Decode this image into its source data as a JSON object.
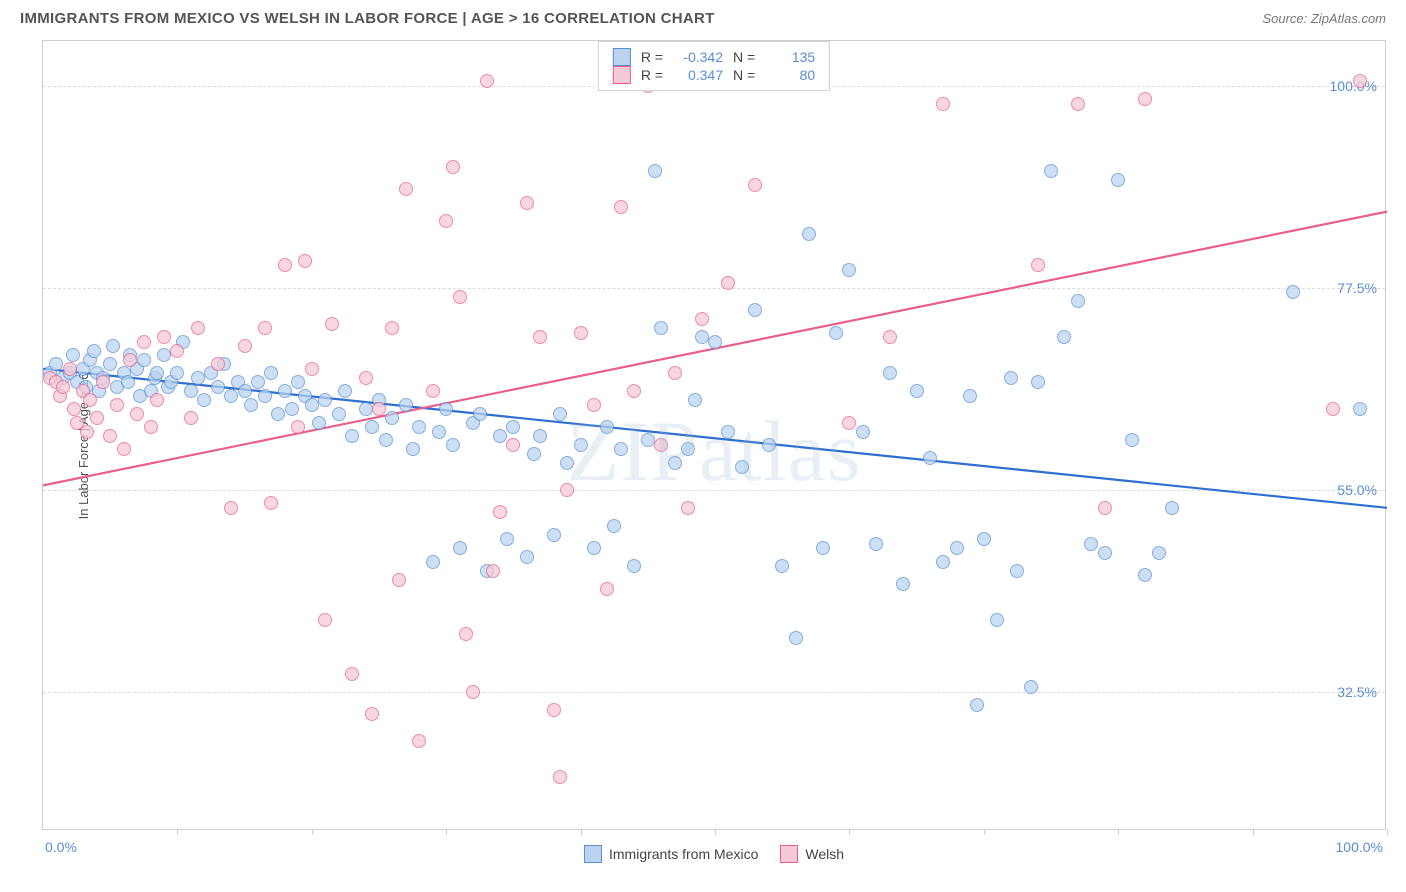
{
  "title": "IMMIGRANTS FROM MEXICO VS WELSH IN LABOR FORCE | AGE > 16 CORRELATION CHART",
  "source": "Source: ZipAtlas.com",
  "ylabel": "In Labor Force | Age > 16",
  "watermark": "ZIPatlas",
  "chart": {
    "type": "scatter",
    "xlim": [
      0,
      100
    ],
    "ylim": [
      17,
      105
    ],
    "x_tick_positions": [
      0,
      10,
      20,
      30,
      40,
      50,
      60,
      70,
      80,
      90,
      100
    ],
    "x_tick_labels_shown": {
      "0": "0.0%",
      "100": "100.0%"
    },
    "y_gridlines": [
      32.5,
      55.0,
      77.5,
      100.0
    ],
    "y_tick_labels": [
      "32.5%",
      "55.0%",
      "77.5%",
      "100.0%"
    ],
    "background_color": "#ffffff",
    "grid_color": "#dcdcdc",
    "border_color": "#cfcfcf",
    "axis_label_color": "#5a8fd6"
  },
  "series": [
    {
      "name": "Immigrants from Mexico",
      "marker_fill": "#b9d3f0",
      "marker_stroke": "#5a8fd6",
      "marker_opacity": 0.72,
      "marker_radius": 7,
      "trend_color": "#2f6fd0",
      "trend_start": [
        0,
        68.5
      ],
      "trend_end": [
        100,
        53.0
      ],
      "R": "-0.342",
      "N": "135",
      "points": [
        [
          0.5,
          68
        ],
        [
          1,
          69
        ],
        [
          1.5,
          67.5
        ],
        [
          2,
          68
        ],
        [
          2.2,
          70
        ],
        [
          2.5,
          67
        ],
        [
          3,
          68.5
        ],
        [
          3.2,
          66.5
        ],
        [
          3.5,
          69.5
        ],
        [
          3.8,
          70.5
        ],
        [
          4,
          68
        ],
        [
          4.2,
          66
        ],
        [
          4.5,
          67.5
        ],
        [
          5,
          69
        ],
        [
          5.2,
          71
        ],
        [
          5.5,
          66.5
        ],
        [
          6,
          68
        ],
        [
          6.3,
          67
        ],
        [
          6.5,
          70
        ],
        [
          7,
          68.5
        ],
        [
          7.2,
          65.5
        ],
        [
          7.5,
          69.5
        ],
        [
          8,
          66
        ],
        [
          8.3,
          67.5
        ],
        [
          8.5,
          68
        ],
        [
          9,
          70
        ],
        [
          9.3,
          66.5
        ],
        [
          9.5,
          67
        ],
        [
          10,
          68
        ],
        [
          10.4,
          71.5
        ],
        [
          11,
          66
        ],
        [
          11.5,
          67.5
        ],
        [
          12,
          65
        ],
        [
          12.5,
          68
        ],
        [
          13,
          66.5
        ],
        [
          13.5,
          69
        ],
        [
          14,
          65.5
        ],
        [
          14.5,
          67
        ],
        [
          15,
          66
        ],
        [
          15.5,
          64.5
        ],
        [
          16,
          67
        ],
        [
          16.5,
          65.5
        ],
        [
          17,
          68
        ],
        [
          17.5,
          63.5
        ],
        [
          18,
          66
        ],
        [
          18.5,
          64
        ],
        [
          19,
          67
        ],
        [
          19.5,
          65.5
        ],
        [
          20,
          64.5
        ],
        [
          20.5,
          62.5
        ],
        [
          21,
          65
        ],
        [
          22,
          63.5
        ],
        [
          22.5,
          66
        ],
        [
          23,
          61
        ],
        [
          24,
          64
        ],
        [
          24.5,
          62
        ],
        [
          25,
          65
        ],
        [
          25.5,
          60.5
        ],
        [
          26,
          63
        ],
        [
          27,
          64.5
        ],
        [
          27.5,
          59.5
        ],
        [
          28,
          62
        ],
        [
          29,
          47
        ],
        [
          29.5,
          61.5
        ],
        [
          30,
          64
        ],
        [
          30.5,
          60
        ],
        [
          31,
          48.5
        ],
        [
          32,
          62.5
        ],
        [
          32.5,
          63.5
        ],
        [
          33,
          46
        ],
        [
          34,
          61
        ],
        [
          34.5,
          49.5
        ],
        [
          35,
          62
        ],
        [
          36,
          47.5
        ],
        [
          36.5,
          59
        ],
        [
          37,
          61
        ],
        [
          38,
          50
        ],
        [
          38.5,
          63.5
        ],
        [
          39,
          58
        ],
        [
          40,
          60
        ],
        [
          41,
          48.5
        ],
        [
          42,
          62
        ],
        [
          42.5,
          51
        ],
        [
          43,
          59.5
        ],
        [
          44,
          46.5
        ],
        [
          45,
          60.5
        ],
        [
          45.5,
          90.5
        ],
        [
          46,
          73
        ],
        [
          47,
          58
        ],
        [
          48,
          59.5
        ],
        [
          48.5,
          65
        ],
        [
          49,
          72
        ],
        [
          50,
          71.5
        ],
        [
          51,
          61.5
        ],
        [
          52,
          57.5
        ],
        [
          53,
          75
        ],
        [
          54,
          60
        ],
        [
          55,
          46.5
        ],
        [
          56,
          38.5
        ],
        [
          57,
          83.5
        ],
        [
          58,
          48.5
        ],
        [
          59,
          72.5
        ],
        [
          60,
          79.5
        ],
        [
          61,
          61.5
        ],
        [
          62,
          49
        ],
        [
          63,
          68
        ],
        [
          64,
          44.5
        ],
        [
          65,
          66
        ],
        [
          66,
          58.5
        ],
        [
          67,
          47
        ],
        [
          68,
          48.5
        ],
        [
          69,
          65.5
        ],
        [
          69.5,
          31
        ],
        [
          70,
          49.5
        ],
        [
          71,
          40.5
        ],
        [
          72,
          67.5
        ],
        [
          72.5,
          46
        ],
        [
          73.5,
          33
        ],
        [
          74,
          67
        ],
        [
          75,
          90.5
        ],
        [
          76,
          72
        ],
        [
          77,
          76
        ],
        [
          78,
          49
        ],
        [
          79,
          48
        ],
        [
          80,
          89.5
        ],
        [
          81,
          60.5
        ],
        [
          82,
          45.5
        ],
        [
          83,
          48
        ],
        [
          84,
          53
        ],
        [
          93,
          77
        ],
        [
          98,
          64
        ]
      ]
    },
    {
      "name": "Welsh",
      "marker_fill": "#f6c9d6",
      "marker_stroke": "#e85f89",
      "marker_opacity": 0.72,
      "marker_radius": 7,
      "trend_color": "#e85f89",
      "trend_start": [
        0,
        55.5
      ],
      "trend_end": [
        100,
        86.0
      ],
      "R": "0.347",
      "N": "80",
      "points": [
        [
          0.5,
          67.5
        ],
        [
          1,
          67
        ],
        [
          1.3,
          65.5
        ],
        [
          1.5,
          66.5
        ],
        [
          2,
          68.5
        ],
        [
          2.3,
          64
        ],
        [
          2.5,
          62.5
        ],
        [
          3,
          66
        ],
        [
          3.3,
          61.5
        ],
        [
          3.5,
          65
        ],
        [
          4,
          63
        ],
        [
          4.5,
          67
        ],
        [
          5,
          61
        ],
        [
          5.5,
          64.5
        ],
        [
          6,
          59.5
        ],
        [
          6.5,
          69.5
        ],
        [
          7,
          63.5
        ],
        [
          7.5,
          71.5
        ],
        [
          8,
          62
        ],
        [
          8.5,
          65
        ],
        [
          9,
          72
        ],
        [
          10,
          70.5
        ],
        [
          11,
          63
        ],
        [
          11.5,
          73
        ],
        [
          13,
          69
        ],
        [
          14,
          53
        ],
        [
          15,
          71
        ],
        [
          16.5,
          73
        ],
        [
          17,
          53.5
        ],
        [
          18,
          80
        ],
        [
          19,
          62
        ],
        [
          19.5,
          80.5
        ],
        [
          20,
          68.5
        ],
        [
          21,
          40.5
        ],
        [
          21.5,
          73.5
        ],
        [
          23,
          34.5
        ],
        [
          24,
          67.5
        ],
        [
          24.5,
          30
        ],
        [
          25,
          64
        ],
        [
          26,
          73
        ],
        [
          26.5,
          45
        ],
        [
          27,
          88.5
        ],
        [
          28,
          27
        ],
        [
          29,
          66
        ],
        [
          30,
          85
        ],
        [
          30.5,
          91
        ],
        [
          31,
          76.5
        ],
        [
          31.5,
          39
        ],
        [
          32,
          32.5
        ],
        [
          33,
          100.5
        ],
        [
          33.5,
          46
        ],
        [
          34,
          52.5
        ],
        [
          35,
          60
        ],
        [
          36,
          87
        ],
        [
          37,
          72
        ],
        [
          38,
          30.5
        ],
        [
          38.5,
          23
        ],
        [
          39,
          55
        ],
        [
          40,
          72.5
        ],
        [
          41,
          64.5
        ],
        [
          42,
          44
        ],
        [
          43,
          86.5
        ],
        [
          44,
          66
        ],
        [
          45,
          100
        ],
        [
          46,
          60
        ],
        [
          47,
          68
        ],
        [
          48,
          53
        ],
        [
          49,
          74
        ],
        [
          51,
          78
        ],
        [
          53,
          89
        ],
        [
          56,
          100.5
        ],
        [
          60,
          62.5
        ],
        [
          63,
          72
        ],
        [
          67,
          98
        ],
        [
          74,
          80
        ],
        [
          77,
          98
        ],
        [
          79,
          53
        ],
        [
          82,
          98.5
        ],
        [
          98,
          100.5
        ],
        [
          96,
          64
        ]
      ]
    }
  ],
  "legend_bottom": [
    {
      "label": "Immigrants from Mexico",
      "fill": "#b9d3f0",
      "stroke": "#5a8fd6"
    },
    {
      "label": "Welsh",
      "fill": "#f6c9d6",
      "stroke": "#e85f89"
    }
  ]
}
